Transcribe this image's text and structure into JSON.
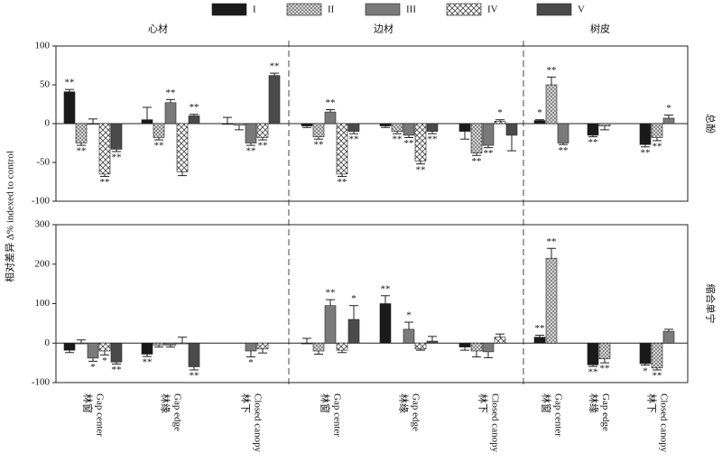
{
  "chart_data": {
    "type": "bar",
    "ylabel": "相对差异 Δ% indexed to control",
    "groups": [
      "心材",
      "边材",
      "树皮"
    ],
    "categories": [
      "林窗",
      "林缘",
      "林下",
      "林窗",
      "林缘",
      "林下",
      "林窗",
      "林缘",
      "林下"
    ],
    "categories_en": [
      "Gap center",
      "Gap edge",
      "Closed canopy",
      "Gap center",
      "Gap edge",
      "Closed canopy",
      "Gap center",
      "Gap edge",
      "Closed canopy"
    ],
    "series": [
      {
        "name": "I",
        "color": "#1a1a1a",
        "pattern": "solid"
      },
      {
        "name": "II",
        "color": "#c8c8c8",
        "pattern": "dots"
      },
      {
        "name": "III",
        "color": "#7a7a7a",
        "pattern": "solid"
      },
      {
        "name": "IV",
        "color": "#ffffff",
        "pattern": "cross"
      },
      {
        "name": "V",
        "color": "#4a4a4a",
        "pattern": "solid"
      }
    ],
    "panels": [
      {
        "label": "总酚",
        "ylim": [
          -100,
          100
        ],
        "yticks": [
          -100,
          -50,
          0,
          50,
          100
        ],
        "series": [
          {
            "values": [
              41,
              5,
              0,
              -3,
              -3,
              -10,
              4,
              -15,
              -27
            ],
            "errors": [
              3,
              16,
              8,
              2,
              2,
              10,
              1,
              2,
              3
            ],
            "significance": [
              "**",
              null,
              null,
              null,
              null,
              null,
              "*",
              "**",
              "**"
            ]
          },
          {
            "values": [
              -25,
              -18,
              -2,
              -17,
              -10,
              -38,
              50,
              -3,
              -18
            ],
            "errors": [
              3,
              3,
              6,
              3,
              3,
              3,
              10,
              5,
              4
            ],
            "significance": [
              "**",
              "**",
              null,
              "**",
              "**",
              "**",
              "**",
              null,
              "**"
            ]
          },
          {
            "values": [
              0,
              27,
              -25,
              15,
              -15,
              -28,
              -25,
              null,
              7
            ],
            "errors": [
              6,
              4,
              3,
              3,
              3,
              3,
              2,
              null,
              4
            ],
            "significance": [
              null,
              "**",
              "**",
              "**",
              "**",
              "**",
              "**",
              null,
              "*"
            ]
          },
          {
            "values": [
              -65,
              -62,
              -18,
              -65,
              -48,
              3,
              null,
              null,
              null
            ],
            "errors": [
              3,
              5,
              3,
              3,
              4,
              2,
              null,
              null,
              null
            ],
            "significance": [
              "**",
              null,
              "**",
              "**",
              "**",
              "*",
              null,
              null,
              null
            ]
          },
          {
            "values": [
              -33,
              10,
              62,
              -10,
              -10,
              -15,
              null,
              null,
              null
            ],
            "errors": [
              3,
              2,
              3,
              3,
              3,
              20,
              null,
              null,
              null
            ],
            "significance": [
              "**",
              "**",
              "**",
              "**",
              "**",
              null,
              null,
              null,
              null
            ]
          }
        ]
      },
      {
        "label": "缩合单宁",
        "ylim": [
          -100,
          300
        ],
        "yticks": [
          -100,
          0,
          100,
          200,
          300
        ],
        "series": [
          {
            "values": [
              -18,
              -28,
              null,
              0,
              100,
              -10,
              15,
              -55,
              -52
            ],
            "errors": [
              6,
              6,
              null,
              12,
              20,
              8,
              5,
              4,
              4
            ],
            "significance": [
              null,
              "**",
              null,
              null,
              "**",
              null,
              "**",
              "**",
              "*"
            ]
          },
          {
            "values": [
              0,
              -5,
              null,
              -20,
              null,
              -20,
              215,
              -40,
              -63
            ],
            "errors": [
              8,
              5,
              null,
              8,
              null,
              15,
              25,
              10,
              5
            ],
            "significance": [
              null,
              null,
              null,
              null,
              null,
              null,
              "**",
              "**",
              "**"
            ]
          },
          {
            "values": [
              -38,
              -5,
              -20,
              95,
              35,
              -22,
              null,
              null,
              30
            ],
            "errors": [
              8,
              5,
              15,
              15,
              18,
              15,
              null,
              null,
              5
            ],
            "significance": [
              "*",
              null,
              "*",
              "**",
              "*",
              null,
              null,
              null,
              null
            ]
          },
          {
            "values": [
              -20,
              0,
              -15,
              -18,
              -15,
              15,
              null,
              null,
              null
            ],
            "errors": [
              10,
              15,
              10,
              6,
              3,
              8,
              null,
              null,
              null
            ],
            "significance": [
              "*",
              null,
              null,
              null,
              null,
              null,
              null,
              null,
              null
            ]
          },
          {
            "values": [
              -48,
              -60,
              null,
              60,
              5,
              null,
              null,
              null,
              null
            ],
            "errors": [
              5,
              8,
              null,
              35,
              12,
              null,
              null,
              null,
              null
            ],
            "significance": [
              "**",
              "**",
              null,
              "*",
              null,
              null,
              null,
              null,
              null
            ]
          }
        ]
      }
    ]
  }
}
